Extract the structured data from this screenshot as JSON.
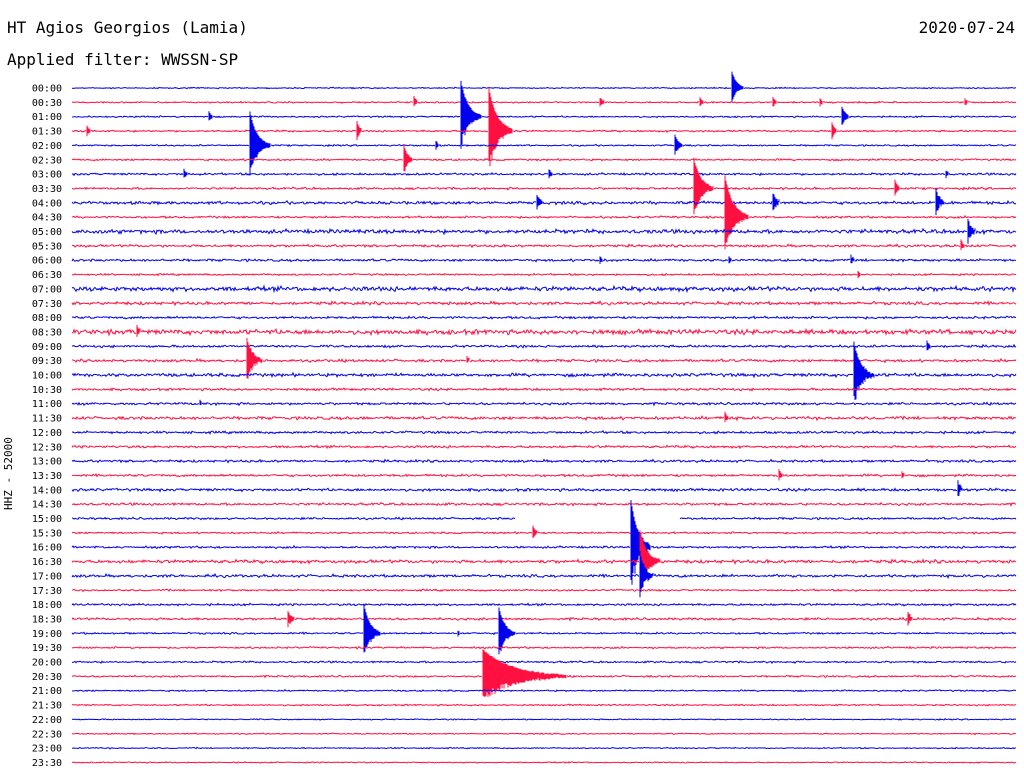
{
  "header": {
    "station": "HT Agios Georgios (Lamia)",
    "date": "2020-07-24",
    "filter": "Applied filter: WWSSN-SP"
  },
  "chart_data": {
    "type": "line",
    "title": "HT Agios Georgios (Lamia)",
    "date": "2020-07-24",
    "ylabel": "HHZ - 52000",
    "colors": [
      "#0000ee",
      "#ff1040"
    ],
    "trace_count": 48,
    "trace_interval_minutes": 30,
    "tick_labels": [
      "00:00",
      "00:30",
      "01:00",
      "01:30",
      "02:00",
      "02:30",
      "03:00",
      "03:30",
      "04:00",
      "04:30",
      "05:00",
      "05:30",
      "06:00",
      "06:30",
      "07:00",
      "07:30",
      "08:00",
      "08:30",
      "09:00",
      "09:30",
      "10:00",
      "10:30",
      "11:00",
      "11:30",
      "12:00",
      "12:30",
      "13:00",
      "13:30",
      "14:00",
      "14:30",
      "15:00",
      "15:30",
      "16:00",
      "16:30",
      "17:00",
      "17:30",
      "18:00",
      "18:30",
      "19:00",
      "19:30",
      "20:00",
      "20:30",
      "21:00",
      "21:30",
      "22:00",
      "22:30",
      "23:00",
      "23:30"
    ],
    "noise_levels": [
      0.4,
      0.5,
      0.5,
      0.6,
      0.5,
      0.6,
      0.7,
      0.7,
      1.0,
      0.7,
      1.3,
      0.8,
      0.8,
      0.6,
      1.5,
      1.0,
      0.8,
      1.6,
      0.8,
      0.9,
      1.1,
      0.8,
      0.8,
      1.0,
      0.8,
      0.8,
      0.8,
      0.8,
      0.9,
      0.8,
      0.7,
      0.6,
      0.7,
      1.1,
      0.9,
      0.6,
      0.7,
      0.8,
      0.6,
      0.6,
      0.6,
      0.6,
      0.5,
      0.5,
      0.4,
      0.4,
      0.4,
      0.4
    ],
    "gaps": [
      {
        "trace": 30,
        "start_min": 14.1,
        "end_min": 19.3
      }
    ],
    "events": [
      {
        "trace": 0,
        "minute": 21.0,
        "amplitude": 14,
        "duration": 0.4
      },
      {
        "trace": 1,
        "minute": 10.9,
        "amplitude": 4,
        "duration": 0.2
      },
      {
        "trace": 1,
        "minute": 16.8,
        "amplitude": 4,
        "duration": 0.3
      },
      {
        "trace": 1,
        "minute": 20.0,
        "amplitude": 3,
        "duration": 0.2
      },
      {
        "trace": 1,
        "minute": 22.3,
        "amplitude": 4,
        "duration": 0.2
      },
      {
        "trace": 1,
        "minute": 23.8,
        "amplitude": 3,
        "duration": 0.2
      },
      {
        "trace": 1,
        "minute": 28.4,
        "amplitude": 3,
        "duration": 0.2
      },
      {
        "trace": 2,
        "minute": 4.4,
        "amplitude": 3,
        "duration": 0.2
      },
      {
        "trace": 2,
        "minute": 12.4,
        "amplitude": 30,
        "duration": 0.6
      },
      {
        "trace": 2,
        "minute": 24.5,
        "amplitude": 8,
        "duration": 0.3
      },
      {
        "trace": 3,
        "minute": 0.5,
        "amplitude": 4,
        "duration": 0.2
      },
      {
        "trace": 3,
        "minute": 9.1,
        "amplitude": 6,
        "duration": 0.2
      },
      {
        "trace": 3,
        "minute": 13.3,
        "amplitude": 36,
        "duration": 0.7
      },
      {
        "trace": 3,
        "minute": 24.2,
        "amplitude": 5,
        "duration": 0.2
      },
      {
        "trace": 4,
        "minute": 5.7,
        "amplitude": 28,
        "duration": 0.6
      },
      {
        "trace": 4,
        "minute": 11.6,
        "amplitude": 3,
        "duration": 0.2
      },
      {
        "trace": 4,
        "minute": 19.2,
        "amplitude": 8,
        "duration": 0.3
      },
      {
        "trace": 5,
        "minute": 10.6,
        "amplitude": 10,
        "duration": 0.3
      },
      {
        "trace": 6,
        "minute": 3.6,
        "amplitude": 3,
        "duration": 0.2
      },
      {
        "trace": 6,
        "minute": 15.2,
        "amplitude": 3,
        "duration": 0.2
      },
      {
        "trace": 6,
        "minute": 27.8,
        "amplitude": 3,
        "duration": 0.2
      },
      {
        "trace": 7,
        "minute": 19.8,
        "amplitude": 26,
        "duration": 0.6
      },
      {
        "trace": 7,
        "minute": 26.2,
        "amplitude": 5,
        "duration": 0.2
      },
      {
        "trace": 8,
        "minute": 14.8,
        "amplitude": 6,
        "duration": 0.3
      },
      {
        "trace": 8,
        "minute": 22.3,
        "amplitude": 8,
        "duration": 0.3
      },
      {
        "trace": 8,
        "minute": 27.5,
        "amplitude": 10,
        "duration": 0.3
      },
      {
        "trace": 9,
        "minute": 20.8,
        "amplitude": 34,
        "duration": 0.7
      },
      {
        "trace": 10,
        "minute": 28.5,
        "amplitude": 10,
        "duration": 0.3
      },
      {
        "trace": 11,
        "minute": 28.3,
        "amplitude": 3,
        "duration": 0.2
      },
      {
        "trace": 12,
        "minute": 16.8,
        "amplitude": 3,
        "duration": 0.2
      },
      {
        "trace": 12,
        "minute": 20.9,
        "amplitude": 3,
        "duration": 0.2
      },
      {
        "trace": 12,
        "minute": 24.8,
        "amplitude": 3,
        "duration": 0.2
      },
      {
        "trace": 13,
        "minute": 25.0,
        "amplitude": 3,
        "duration": 0.2
      },
      {
        "trace": 17,
        "minute": 2.1,
        "amplitude": 4,
        "duration": 0.2
      },
      {
        "trace": 18,
        "minute": 27.2,
        "amplitude": 4,
        "duration": 0.2
      },
      {
        "trace": 19,
        "minute": 5.6,
        "amplitude": 18,
        "duration": 0.5
      },
      {
        "trace": 19,
        "minute": 12.6,
        "amplitude": 2,
        "duration": 0.2
      },
      {
        "trace": 20,
        "minute": 24.9,
        "amplitude": 26,
        "duration": 0.6
      },
      {
        "trace": 22,
        "minute": 4.1,
        "amplitude": 2,
        "duration": 0.2
      },
      {
        "trace": 23,
        "minute": 20.8,
        "amplitude": 3,
        "duration": 0.2
      },
      {
        "trace": 27,
        "minute": 22.5,
        "amplitude": 4,
        "duration": 0.2
      },
      {
        "trace": 27,
        "minute": 26.4,
        "amplitude": 3,
        "duration": 0.2
      },
      {
        "trace": 28,
        "minute": 28.2,
        "amplitude": 5,
        "duration": 0.2
      },
      {
        "trace": 31,
        "minute": 14.7,
        "amplitude": 4,
        "duration": 0.2
      },
      {
        "trace": 32,
        "minute": 17.8,
        "amplitude": 40,
        "duration": 0.6
      },
      {
        "trace": 33,
        "minute": 18.1,
        "amplitude": 26,
        "duration": 0.6
      },
      {
        "trace": 34,
        "minute": 18.1,
        "amplitude": 18,
        "duration": 0.4
      },
      {
        "trace": 37,
        "minute": 6.9,
        "amplitude": 6,
        "duration": 0.3
      },
      {
        "trace": 37,
        "minute": 26.6,
        "amplitude": 5,
        "duration": 0.2
      },
      {
        "trace": 38,
        "minute": 9.3,
        "amplitude": 26,
        "duration": 0.5
      },
      {
        "trace": 38,
        "minute": 12.3,
        "amplitude": 2,
        "duration": 0.2
      },
      {
        "trace": 38,
        "minute": 13.6,
        "amplitude": 22,
        "duration": 0.5
      },
      {
        "trace": 41,
        "minute": 13.1,
        "amplitude": 26,
        "duration": 2.6
      }
    ]
  }
}
